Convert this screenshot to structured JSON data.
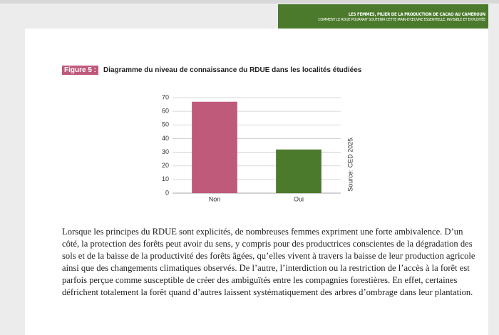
{
  "header": {
    "title": "LES FEMMES, PILIER DE LA PRODUCTION DE CACAO AU CAMEROUN",
    "subtitle": "COMMENT LE RDUE POURRAIT SOUTENIR CETTE MAIN-D'ŒUVRE ESSENTIELLE, INVISIBLE ET EXPLOITÉE"
  },
  "figure": {
    "label": "Figure 5 :",
    "caption": "Diagramme du niveau de connaissance du RDUE dans les localités étudiées",
    "source": "Source: CED 2025."
  },
  "chart_data": {
    "type": "bar",
    "categories": [
      "Non",
      "Oui"
    ],
    "values": [
      67,
      32
    ],
    "colors": [
      "#bf5a7b",
      "#4b7a2c"
    ],
    "ylim": [
      0,
      70
    ],
    "yticks": [
      0,
      10,
      20,
      30,
      40,
      50,
      60,
      70
    ],
    "grid": true
  },
  "paragraph": "Lorsque les principes du RDUE sont explicités, de nombreuses femmes expriment une forte ambivalence. D’un côté, la protection des forêts peut avoir du sens, y compris pour des productrices conscientes de la dégradation des sols et de la baisse de la productivité des forêts âgées, qu’elles vivent à travers la baisse de leur production agricole ainsi que des changements climatiques observés. De l’autre, l’interdiction ou la restriction de l’accès à la forêt est parfois perçue comme susceptible de créer des ambiguïtés entre les compagnies forestières. En effet, certaines défrichent totalement la forêt quand d’autres laissent systématiquement des arbres d’ombrage dans leur plantation."
}
